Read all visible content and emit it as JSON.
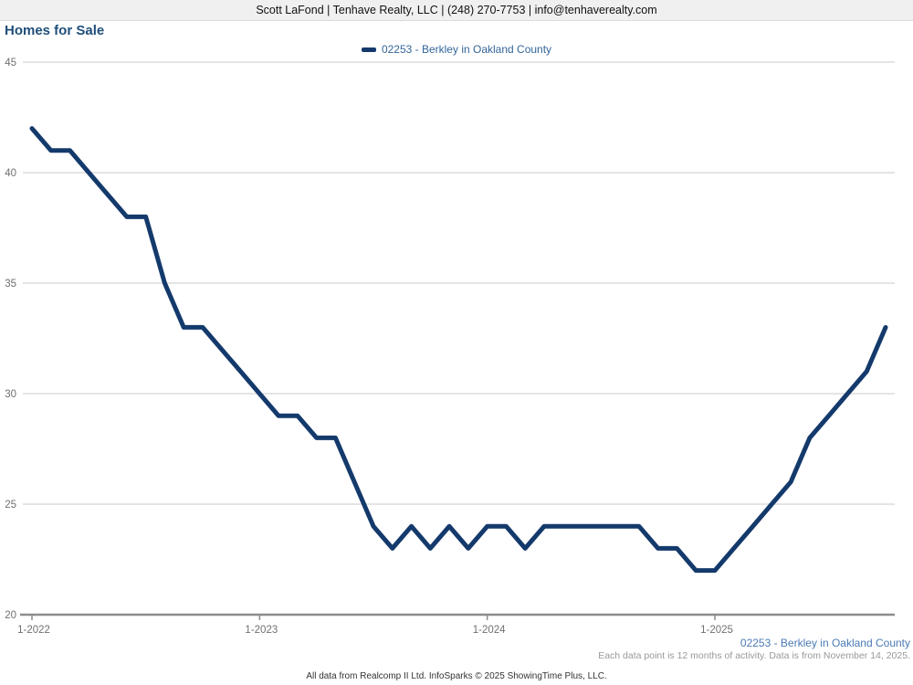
{
  "header": {
    "contact_line": "Scott LaFond | Tenhave Realty, LLC | (248) 270-7753 | info@tenhaverealty.com"
  },
  "page": {
    "title": "Homes for Sale"
  },
  "legend": {
    "label": "02253 - Berkley in Oakland County"
  },
  "chart_data": {
    "type": "line",
    "title": "Homes for Sale",
    "x": [
      "1-2022",
      "2-2022",
      "3-2022",
      "4-2022",
      "5-2022",
      "6-2022",
      "7-2022",
      "8-2022",
      "9-2022",
      "10-2022",
      "11-2022",
      "12-2022",
      "1-2023",
      "2-2023",
      "3-2023",
      "4-2023",
      "5-2023",
      "6-2023",
      "7-2023",
      "8-2023",
      "9-2023",
      "10-2023",
      "11-2023",
      "12-2023",
      "1-2024",
      "2-2024",
      "3-2024",
      "4-2024",
      "5-2024",
      "6-2024",
      "7-2024",
      "8-2024",
      "9-2024",
      "10-2024",
      "11-2024",
      "12-2024",
      "1-2025",
      "2-2025",
      "3-2025",
      "4-2025",
      "5-2025",
      "6-2025",
      "7-2025",
      "8-2025",
      "9-2025",
      "10-2025"
    ],
    "series": [
      {
        "name": "02253 - Berkley in Oakland County",
        "color": "#143a6c",
        "values": [
          42,
          41,
          41,
          40,
          39,
          38,
          38,
          35,
          33,
          33,
          32,
          31,
          30,
          29,
          29,
          28,
          28,
          26,
          24,
          23,
          24,
          23,
          24,
          23,
          24,
          24,
          23,
          24,
          24,
          24,
          24,
          24,
          24,
          23,
          23,
          22,
          22,
          23,
          24,
          25,
          26,
          28,
          29,
          30,
          31,
          33
        ]
      }
    ],
    "x_tick_labels": [
      "1-2022",
      "1-2023",
      "1-2024",
      "1-2025"
    ],
    "y_ticks": [
      20,
      25,
      30,
      35,
      40,
      45
    ],
    "ylim": [
      20,
      45
    ],
    "grid": "horizontal",
    "legend_position": "top-center",
    "grid_color": "#c8c8c8",
    "axis_color": "#8c8c8c",
    "tick_label_color": "#707070"
  },
  "footer": {
    "series_label": "02253 - Berkley in Oakland County",
    "note": "Each data point is 12 months of activity. Data is from November 14, 2025.",
    "attribution": "All data from Realcomp II Ltd. InfoSparks © 2025 ShowingTime Plus, LLC."
  }
}
